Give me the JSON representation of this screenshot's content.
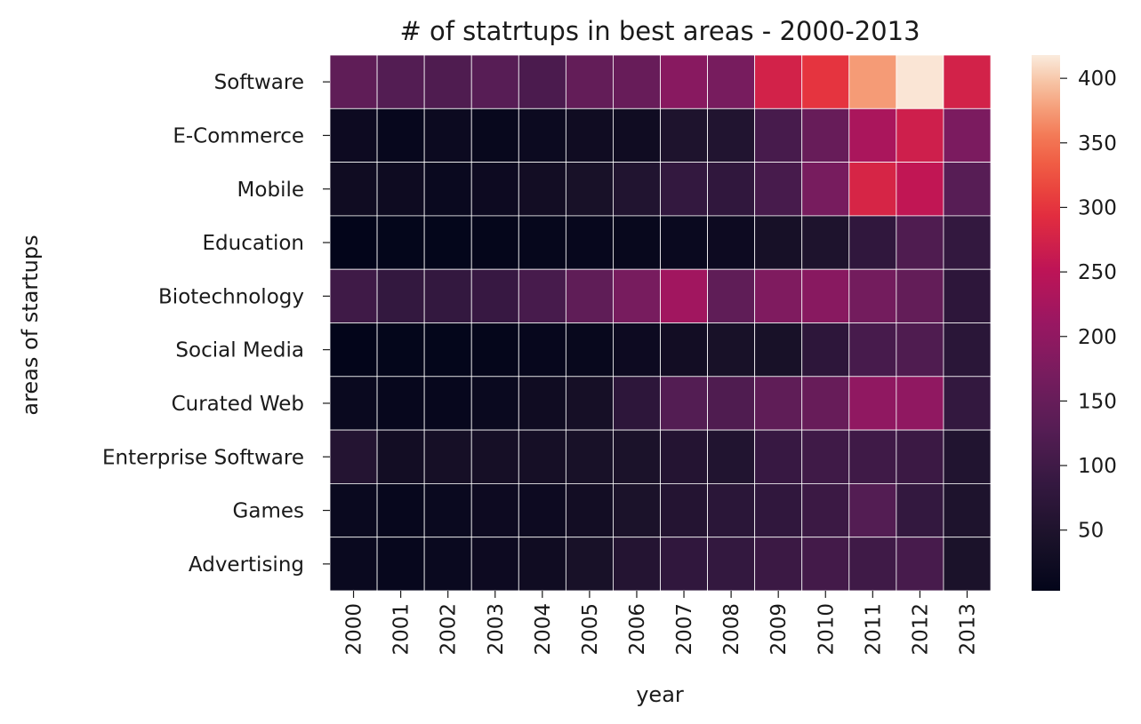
{
  "chart_data": {
    "type": "heatmap",
    "title": "# of statrtups in best areas - 2000-2013",
    "xlabel": "year",
    "ylabel": "areas of startups",
    "x_categories": [
      "2000",
      "2001",
      "2002",
      "2003",
      "2004",
      "2005",
      "2006",
      "2007",
      "2008",
      "2009",
      "2010",
      "2011",
      "2012",
      "2013"
    ],
    "y_categories": [
      "Software",
      "E-Commerce",
      "Mobile",
      "Education",
      "Biotechnology",
      "Social Media",
      "Curated Web",
      "Enterprise Software",
      "Games",
      "Advertising"
    ],
    "values": [
      [
        140,
        125,
        120,
        130,
        115,
        145,
        150,
        190,
        170,
        275,
        300,
        375,
        415,
        275
      ],
      [
        20,
        10,
        18,
        12,
        18,
        25,
        25,
        50,
        55,
        110,
        150,
        230,
        270,
        175
      ],
      [
        25,
        22,
        15,
        20,
        30,
        40,
        55,
        85,
        80,
        110,
        170,
        280,
        255,
        130
      ],
      [
        3,
        5,
        5,
        6,
        8,
        10,
        12,
        15,
        20,
        38,
        50,
        80,
        120,
        85
      ],
      [
        100,
        85,
        85,
        90,
        110,
        140,
        170,
        220,
        140,
        180,
        190,
        165,
        145,
        75
      ],
      [
        3,
        5,
        5,
        6,
        10,
        12,
        20,
        30,
        40,
        40,
        75,
        110,
        120,
        70
      ],
      [
        15,
        10,
        10,
        15,
        25,
        35,
        75,
        125,
        120,
        140,
        150,
        200,
        200,
        85
      ],
      [
        60,
        30,
        35,
        35,
        35,
        40,
        45,
        60,
        55,
        90,
        100,
        100,
        95,
        55
      ],
      [
        15,
        10,
        15,
        20,
        20,
        30,
        45,
        60,
        70,
        80,
        95,
        125,
        85,
        50
      ],
      [
        15,
        10,
        15,
        20,
        25,
        40,
        60,
        80,
        85,
        95,
        105,
        100,
        110,
        45
      ]
    ],
    "colorbar": {
      "min": 3,
      "max": 418,
      "ticks": [
        50,
        100,
        150,
        200,
        250,
        300,
        350,
        400
      ],
      "colormap": "rocket"
    }
  }
}
